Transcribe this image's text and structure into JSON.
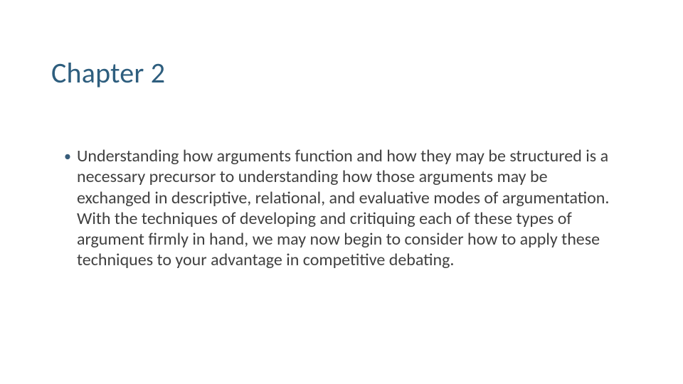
{
  "slide": {
    "title": "Chapter 2",
    "bullet_marker": "•",
    "body_text": "Understanding how arguments function and how they may be structured is a necessary precursor to understanding how those arguments may be exchanged in descriptive, relational, and evaluative modes of argumentation. With the techniques of developing and critiquing each of these types of argument firmly in hand, we may now begin to consider how to apply these techniques to your advantage in competitive debating."
  },
  "colors": {
    "title_color": "#2e5e7e",
    "body_color": "#404040",
    "bullet_color": "#385d7a",
    "background": "#ffffff"
  },
  "typography": {
    "title_fontsize": 40,
    "body_fontsize": 24,
    "font_family": "Calibri"
  }
}
